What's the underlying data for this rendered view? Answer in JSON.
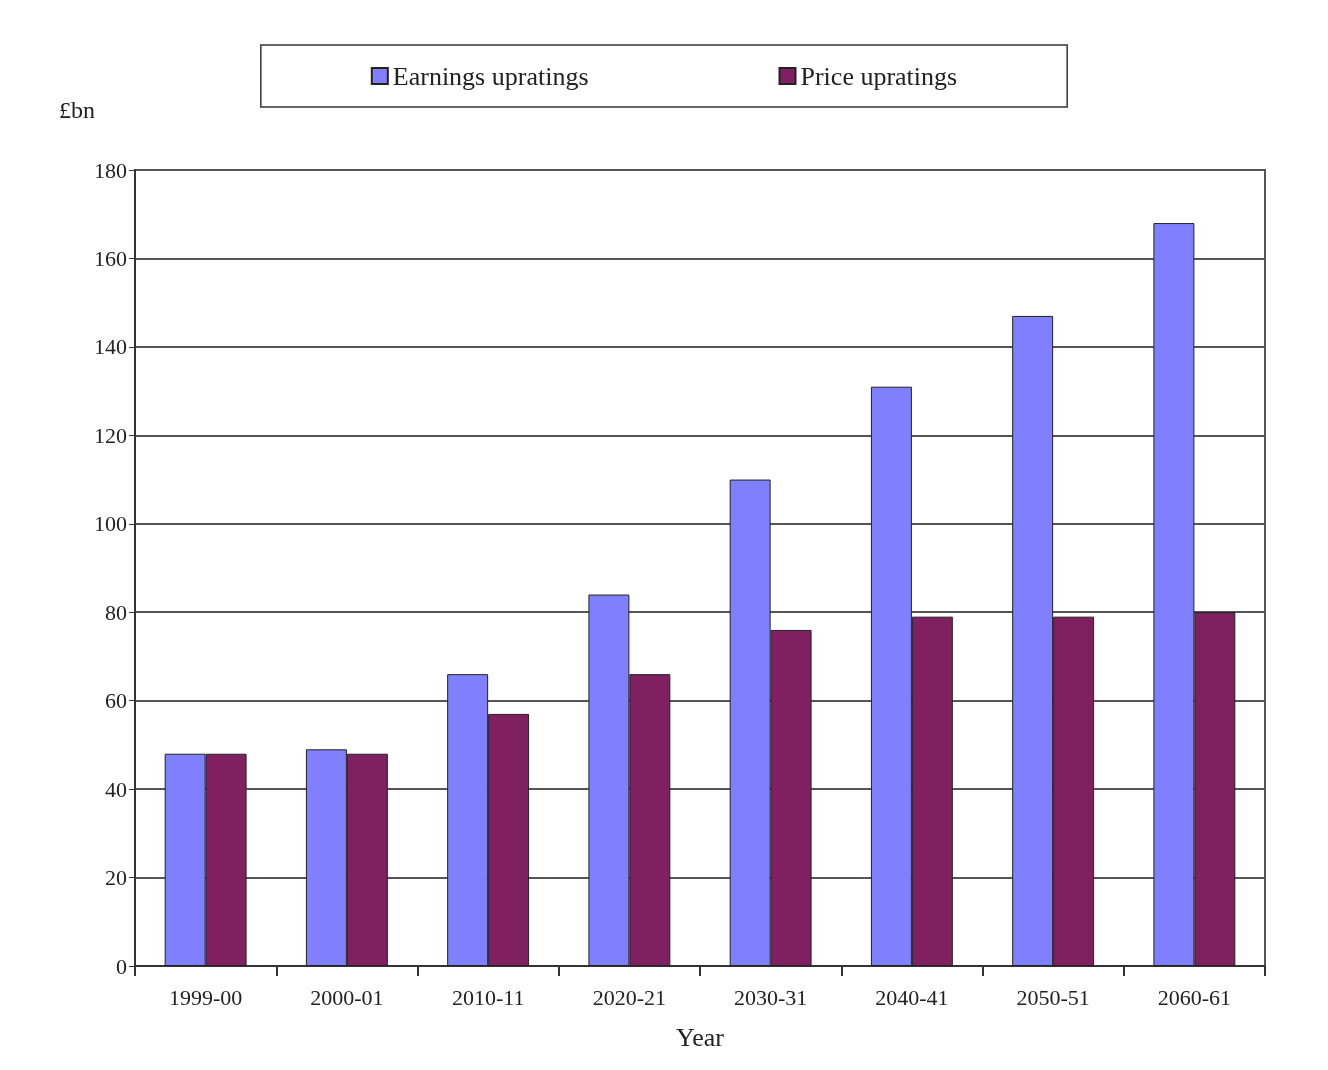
{
  "chart_data": {
    "type": "bar",
    "xlabel": "Year",
    "ylabel": "£bn",
    "categories": [
      "1999-00",
      "2000-01",
      "2010-11",
      "2020-21",
      "2030-31",
      "2040-41",
      "2050-51",
      "2060-61"
    ],
    "series": [
      {
        "name": "Earnings upratings",
        "color": "#8080ff",
        "values": [
          48,
          49,
          66,
          84,
          110,
          131,
          147,
          168
        ]
      },
      {
        "name": "Price upratings",
        "color": "#802060",
        "values": [
          48,
          48,
          57,
          66,
          76,
          79,
          79,
          80
        ]
      }
    ],
    "ylim": [
      0,
      180
    ],
    "yticks": [
      0,
      20,
      40,
      60,
      80,
      100,
      120,
      140,
      160,
      180
    ],
    "grid": "y",
    "legend": "top"
  }
}
